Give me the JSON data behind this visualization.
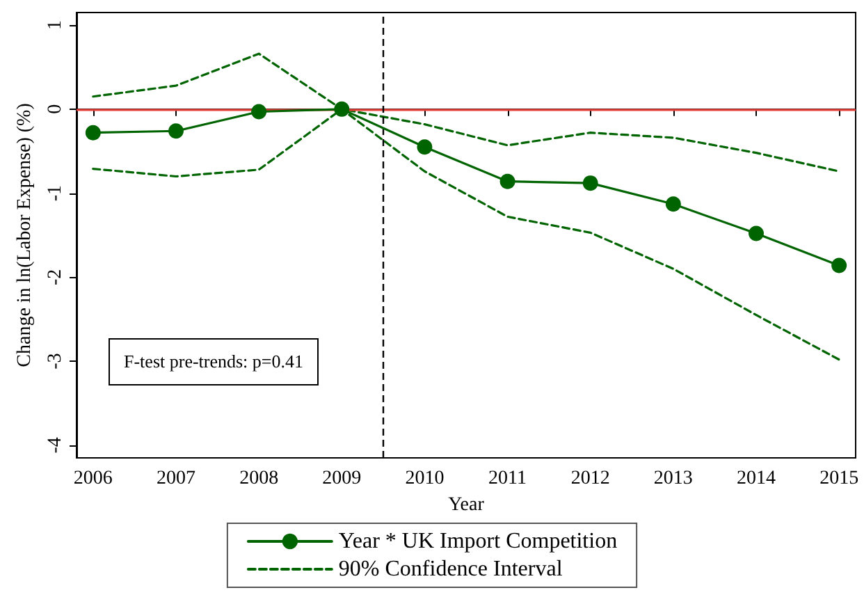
{
  "chart_data": {
    "type": "line",
    "xlabel": "Year",
    "ylabel": "Change in ln(Labor Expense) (%)",
    "x": [
      2006,
      2007,
      2008,
      2009,
      2010,
      2011,
      2012,
      2013,
      2014,
      2015
    ],
    "series": [
      {
        "name": "Year * UK Import Competition",
        "color": "#006400",
        "marker": "circle",
        "line_style": "solid",
        "values": [
          -0.28,
          -0.26,
          -0.03,
          0,
          -0.45,
          -0.86,
          -0.88,
          -1.13,
          -1.48,
          -1.86
        ]
      },
      {
        "name": "90% Confidence Interval",
        "color": "#006400",
        "marker": "none",
        "line_style": "dashed",
        "values": [
          0.15,
          0.28,
          0.66,
          0,
          -0.18,
          -0.43,
          -0.28,
          -0.34,
          -0.52,
          -0.74
        ]
      },
      {
        "color": "#006400",
        "marker": "none",
        "line_style": "dashed",
        "values": [
          -0.71,
          -0.8,
          -0.72,
          0,
          -0.74,
          -1.28,
          -1.47,
          -1.9,
          -2.45,
          -2.98
        ]
      }
    ],
    "xlim": [
      2005.8,
      2015.2
    ],
    "xticks": [
      2006,
      2007,
      2008,
      2009,
      2010,
      2011,
      2012,
      2013,
      2014,
      2015
    ],
    "ylim": [
      -4.15,
      1.15
    ],
    "yticks": [
      -4,
      -3,
      -2,
      -1,
      0,
      1
    ],
    "ref_lines": [
      {
        "axis": "y",
        "value": 0,
        "color": "#e8413a",
        "line_style": "solid"
      },
      {
        "axis": "x",
        "value": 2009.5,
        "color": "#000000",
        "line_style": "dashed"
      }
    ],
    "annotations": [
      "F-test pre-trends: p=0.41"
    ],
    "grid": false,
    "legend": "bottom"
  }
}
